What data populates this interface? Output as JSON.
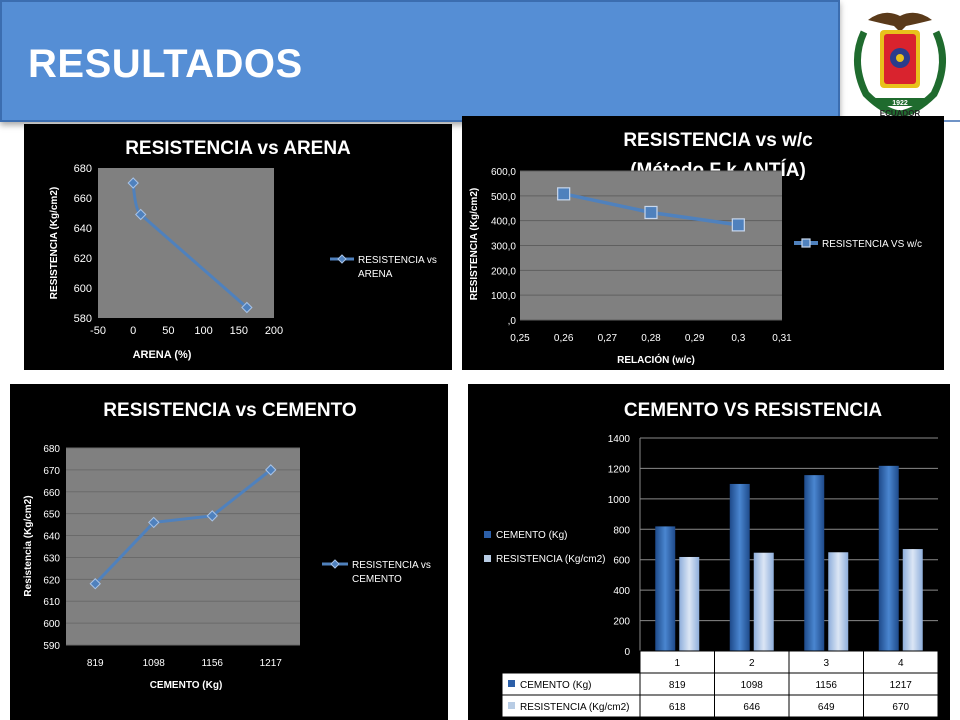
{
  "slide": {
    "title": "RESULTADOS"
  },
  "crest": {
    "year": "1922",
    "label": "ECUADOR",
    "colors": [
      "#1f6b2e",
      "#d9232e",
      "#e8c21c",
      "#2a3c8c"
    ]
  },
  "colors": {
    "header_bg": "#558ed5",
    "plot_bg": "#808080",
    "line": "#4f81bd",
    "bar_dark": "#2c5fa8",
    "bar_light": "#b8cce4",
    "panel_bg": "#000000"
  },
  "chart_data": [
    {
      "type": "line",
      "title": "RESISTENCIA vs ARENA",
      "xlabel": "ARENA (%)",
      "ylabel": "RESISTENCIA (Kg/cm2)",
      "x": [
        0,
        10.7,
        161.5
      ],
      "series": [
        {
          "name": "RESISTENCIA vs ARENA",
          "values": [
            670,
            649,
            587
          ]
        }
      ],
      "xlim": [
        -50,
        200
      ],
      "xticks": [
        "-50",
        "0",
        "50",
        "100",
        "150",
        "200"
      ],
      "ylim": [
        580,
        680
      ],
      "yticks": [
        "580",
        "600",
        "620",
        "640",
        "660",
        "680"
      ],
      "legend_position": "right",
      "grid": false
    },
    {
      "type": "line",
      "title": "RESISTENCIA vs w/c",
      "subtitle": "(Método F k ANTÍA)",
      "xlabel": "RELACIÓN (w/c)",
      "ylabel": "RESISTENCIA (Kg/cm2)",
      "x": [
        0.26,
        0.28,
        0.3
      ],
      "series": [
        {
          "name": "RESISTENCIA VS w/c",
          "values": [
            508,
            433,
            383
          ]
        }
      ],
      "xlim": [
        0.25,
        0.31
      ],
      "xticks": [
        "0,25",
        "0,26",
        "0,27",
        "0,28",
        "0,29",
        "0,3",
        "0,31"
      ],
      "ylim": [
        0,
        600
      ],
      "yticks": [
        ",0",
        "100,0",
        "200,0",
        "300,0",
        "400,0",
        "500,0",
        "600,0"
      ],
      "legend_position": "right",
      "grid": true
    },
    {
      "type": "line",
      "title": "RESISTENCIA vs CEMENTO",
      "xlabel": "CEMENTO (Kg)",
      "ylabel": "Resistencia (Kg/cm2)",
      "categories": [
        "819",
        "1098",
        "1156",
        "1217"
      ],
      "series": [
        {
          "name": "RESISTENCIA vs CEMENTO",
          "values": [
            618,
            646,
            649,
            670
          ]
        }
      ],
      "ylim": [
        590,
        680
      ],
      "yticks": [
        "590",
        "600",
        "610",
        "620",
        "630",
        "640",
        "650",
        "660",
        "670",
        "680"
      ],
      "legend_position": "right",
      "grid": true
    },
    {
      "type": "bar",
      "title": "CEMENTO VS RESISTENCIA",
      "categories": [
        "1",
        "2",
        "3",
        "4"
      ],
      "series": [
        {
          "name": "CEMENTO (Kg)",
          "values": [
            819,
            1098,
            1156,
            1217
          ],
          "table": [
            "819",
            "1098",
            "1156",
            "1217"
          ]
        },
        {
          "name": "RESISTENCIA (Kg/cm2)",
          "values": [
            618,
            646,
            649,
            670
          ],
          "table": [
            "618",
            "646",
            "649",
            "670"
          ]
        }
      ],
      "ylim": [
        0,
        1400
      ],
      "yticks": [
        "0",
        "200",
        "400",
        "600",
        "800",
        "1000",
        "1200",
        "1400"
      ],
      "legend_position": "left",
      "grid": true,
      "data_table": true
    }
  ]
}
